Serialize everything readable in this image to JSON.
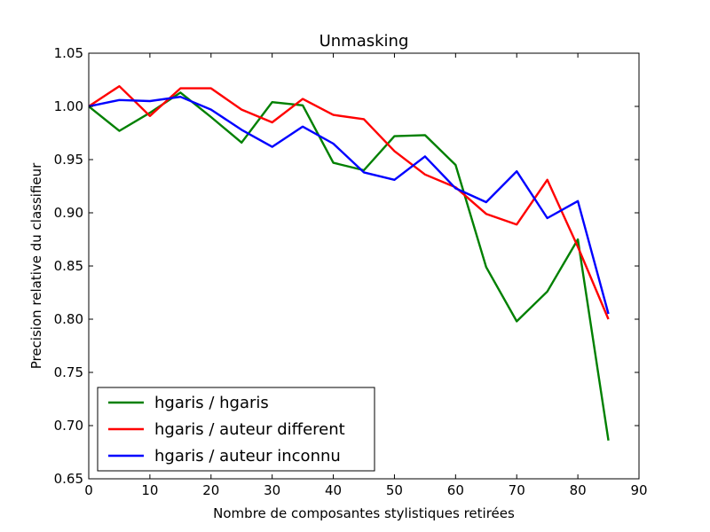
{
  "chart_data": {
    "type": "line",
    "title": "Unmasking",
    "xlabel": "Nombre de composantes stylistiques retirées",
    "ylabel": "Precision relative du classifieur",
    "xlim": [
      0,
      90
    ],
    "ylim": [
      0.65,
      1.05
    ],
    "x_ticks": [
      0,
      10,
      20,
      30,
      40,
      50,
      60,
      70,
      80,
      90
    ],
    "y_ticks": [
      0.65,
      0.7,
      0.75,
      0.8,
      0.85,
      0.9,
      0.95,
      1.0,
      1.05
    ],
    "grid": false,
    "legend_position": "lower-left",
    "x": [
      0,
      5,
      10,
      15,
      20,
      25,
      30,
      35,
      40,
      45,
      50,
      55,
      60,
      65,
      70,
      75,
      80,
      85
    ],
    "series": [
      {
        "name": "hgaris / hgaris",
        "color": "#008000",
        "values": [
          1.0,
          0.977,
          0.994,
          1.013,
          0.99,
          0.966,
          1.004,
          1.001,
          0.947,
          0.94,
          0.972,
          0.973,
          0.945,
          0.849,
          0.798,
          0.826,
          0.875,
          0.686
        ]
      },
      {
        "name": "hgaris / auteur different",
        "color": "#ff0000",
        "values": [
          1.0,
          1.019,
          0.991,
          1.017,
          1.017,
          0.997,
          0.985,
          1.007,
          0.992,
          0.988,
          0.958,
          0.936,
          0.924,
          0.899,
          0.889,
          0.931,
          0.868,
          0.8
        ]
      },
      {
        "name": "hgaris / auteur inconnu",
        "color": "#0000ff",
        "values": [
          1.0,
          1.006,
          1.005,
          1.009,
          0.997,
          0.978,
          0.962,
          0.981,
          0.965,
          0.938,
          0.931,
          0.953,
          0.923,
          0.91,
          0.939,
          0.895,
          0.911,
          0.805
        ]
      }
    ]
  }
}
